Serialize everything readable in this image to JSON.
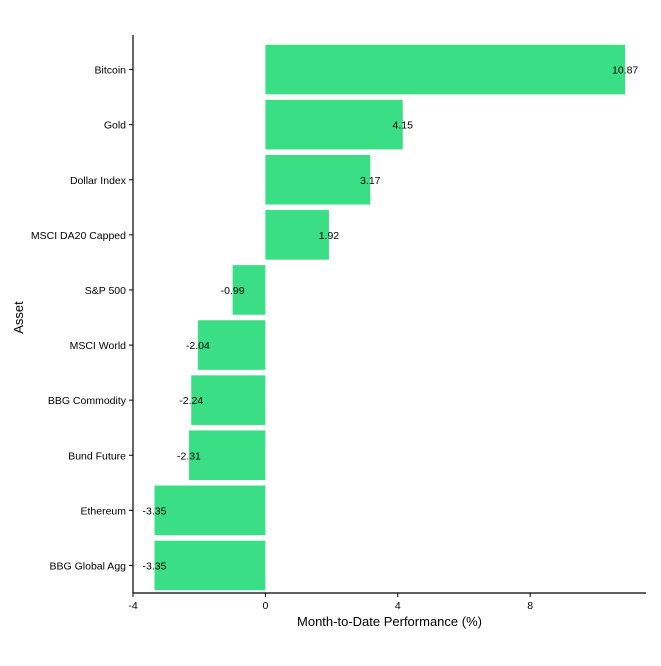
{
  "chart_data": {
    "type": "bar",
    "orientation": "horizontal",
    "categories": [
      "Bitcoin",
      "Gold",
      "Dollar Index",
      "MSCI DA20 Capped",
      "S&P 500",
      "MSCI World",
      "BBG Commodity",
      "Bund Future",
      "Ethereum",
      "BBG Global Agg"
    ],
    "values": [
      10.87,
      4.15,
      3.17,
      1.92,
      -0.99,
      -2.04,
      -2.24,
      -2.31,
      -3.35,
      -3.35
    ],
    "data_labels": [
      "10.87",
      "4.15",
      "3.17",
      "1.92",
      "-0.99",
      "-2.04",
      "-2.24",
      "-2.31",
      "-3.35",
      "-3.35"
    ],
    "xlabel": "Month-to-Date Performance (%)",
    "ylabel": "Asset",
    "xlim": [
      -4,
      11.5
    ],
    "xticks": [
      -4,
      0,
      4,
      8
    ],
    "xtick_labels": [
      "-4",
      "0",
      "4",
      "8"
    ],
    "bar_color": "#3ADE84",
    "grid": false,
    "legend": "none"
  }
}
